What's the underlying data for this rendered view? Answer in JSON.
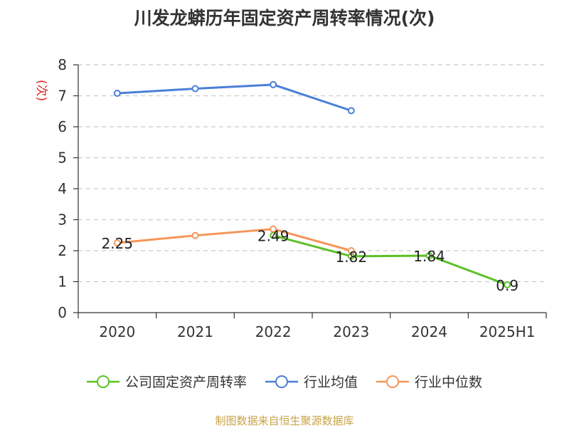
{
  "chart_data": {
    "type": "line",
    "title": "川发龙蟒历年固定资产周转率情况(次)",
    "ylabel": "(次)",
    "xlabel": "",
    "categories": [
      "2020",
      "2021",
      "2022",
      "2023",
      "2024",
      "2025H1"
    ],
    "ylim": [
      0,
      8
    ],
    "yticks": [
      0,
      1,
      2,
      3,
      4,
      5,
      6,
      7,
      8
    ],
    "grid": true,
    "legend_position": "bottom",
    "series": [
      {
        "name": "公司固定资产周转率",
        "color": "#5bc127",
        "values": [
          null,
          null,
          2.49,
          1.82,
          1.84,
          0.9
        ],
        "labels": [
          null,
          null,
          "2.49",
          "1.82",
          "1.84",
          "0.9"
        ]
      },
      {
        "name": "行业均值",
        "color": "#4a7fd8",
        "values": [
          7.08,
          7.23,
          7.36,
          6.52,
          null,
          null
        ],
        "labels": [
          null,
          null,
          null,
          null,
          null,
          null
        ]
      },
      {
        "name": "行业中位数",
        "color": "#f5965a",
        "values": [
          2.25,
          2.49,
          2.7,
          2.0,
          null,
          null
        ],
        "labels": [
          "2.25",
          null,
          null,
          null,
          null,
          null
        ]
      }
    ]
  },
  "source": "制图数据来自恒生聚源数据库",
  "colors": {
    "title": "#333333",
    "ylabel": "#e02020",
    "source": "#c8a24a",
    "grid": "#cccccc"
  }
}
